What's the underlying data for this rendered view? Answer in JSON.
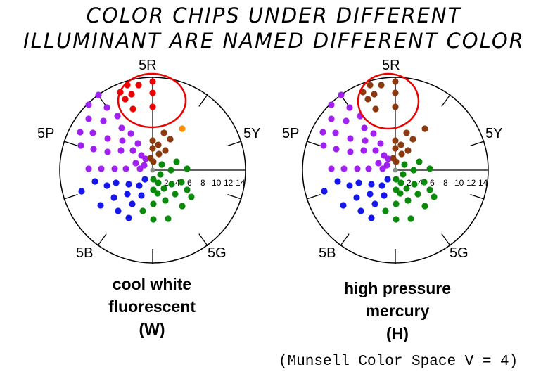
{
  "title": {
    "line1": "COLOR CHIPS UNDER DIFFERENT",
    "line2": "ILLUMINANT ARE NAMED DIFFERENT COLOR"
  },
  "hue_labels": {
    "top": "5R",
    "top_right": "5Y",
    "left": "5P",
    "bottom_left": "5B",
    "bottom_right": "5G"
  },
  "chroma_scale": [
    "2",
    "4",
    "6",
    "8",
    "10",
    "12",
    "14"
  ],
  "colors": {
    "red": "#ee0000",
    "orange": "#ff8c00",
    "brown": "#8b3a0f",
    "purple": "#a020f0",
    "blue": "#1515ee",
    "green": "#0a8a0a",
    "gray": "#8c8c8c",
    "circle": "#ee0000"
  },
  "panels": [
    {
      "name": "cool-white",
      "caption": [
        "cool white",
        "fluorescent",
        "(W)"
      ]
    },
    {
      "name": "high-pressure-mercury",
      "caption": [
        "high pressure",
        "mercury",
        "(H)"
      ]
    }
  ],
  "footnote": "(Munsell Color Space V = 4)"
}
